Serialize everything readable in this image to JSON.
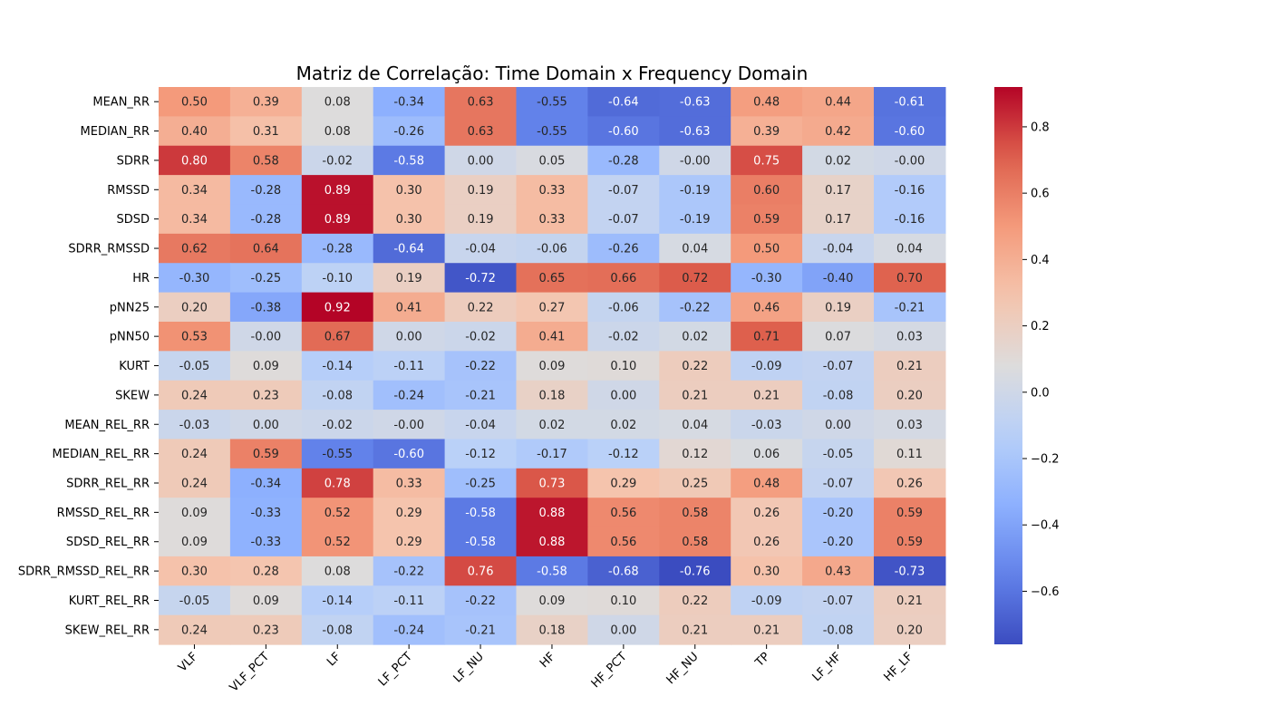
{
  "chart_data": {
    "type": "heatmap",
    "title": "Matriz de Correlação: Time Domain x Frequency Domain",
    "rows": [
      "MEAN_RR",
      "MEDIAN_RR",
      "SDRR",
      "RMSSD",
      "SDSD",
      "SDRR_RMSSD",
      "HR",
      "pNN25",
      "pNN50",
      "KURT",
      "SKEW",
      "MEAN_REL_RR",
      "MEDIAN_REL_RR",
      "SDRR_REL_RR",
      "RMSSD_REL_RR",
      "SDSD_REL_RR",
      "SDRR_RMSSD_REL_RR",
      "KURT_REL_RR",
      "SKEW_REL_RR"
    ],
    "columns": [
      "VLF",
      "VLF_PCT",
      "LF",
      "LF_PCT",
      "LF_NU",
      "HF",
      "HF_PCT",
      "HF_NU",
      "TP",
      "LF_HF",
      "HF_LF"
    ],
    "values": [
      [
        0.5,
        0.39,
        0.08,
        -0.34,
        0.63,
        -0.55,
        -0.64,
        -0.63,
        0.48,
        0.44,
        -0.61
      ],
      [
        0.4,
        0.31,
        0.08,
        -0.26,
        0.63,
        -0.55,
        -0.6,
        -0.63,
        0.39,
        0.42,
        -0.6
      ],
      [
        0.8,
        0.58,
        -0.02,
        -0.58,
        0.0,
        0.05,
        -0.28,
        -0.0,
        0.75,
        0.02,
        -0.0
      ],
      [
        0.34,
        -0.28,
        0.89,
        0.3,
        0.19,
        0.33,
        -0.07,
        -0.19,
        0.6,
        0.17,
        -0.16
      ],
      [
        0.34,
        -0.28,
        0.89,
        0.3,
        0.19,
        0.33,
        -0.07,
        -0.19,
        0.59,
        0.17,
        -0.16
      ],
      [
        0.62,
        0.64,
        -0.28,
        -0.64,
        -0.04,
        -0.06,
        -0.26,
        0.04,
        0.5,
        -0.04,
        0.04
      ],
      [
        -0.3,
        -0.25,
        -0.1,
        0.19,
        -0.72,
        0.65,
        0.66,
        0.72,
        -0.3,
        -0.4,
        0.7
      ],
      [
        0.2,
        -0.38,
        0.92,
        0.41,
        0.22,
        0.27,
        -0.06,
        -0.22,
        0.46,
        0.19,
        -0.21
      ],
      [
        0.53,
        -0.0,
        0.67,
        0.0,
        -0.02,
        0.41,
        -0.02,
        0.02,
        0.71,
        0.07,
        0.03
      ],
      [
        -0.05,
        0.09,
        -0.14,
        -0.11,
        -0.22,
        0.09,
        0.1,
        0.22,
        -0.09,
        -0.07,
        0.21
      ],
      [
        0.24,
        0.23,
        -0.08,
        -0.24,
        -0.21,
        0.18,
        0.0,
        0.21,
        0.21,
        -0.08,
        0.2
      ],
      [
        -0.03,
        0.0,
        -0.02,
        -0.0,
        -0.04,
        0.02,
        0.02,
        0.04,
        -0.03,
        0.0,
        0.03
      ],
      [
        0.24,
        0.59,
        -0.55,
        -0.6,
        -0.12,
        -0.17,
        -0.12,
        0.12,
        0.06,
        -0.05,
        0.11
      ],
      [
        0.24,
        -0.34,
        0.78,
        0.33,
        -0.25,
        0.73,
        0.29,
        0.25,
        0.48,
        -0.07,
        0.26
      ],
      [
        0.09,
        -0.33,
        0.52,
        0.29,
        -0.58,
        0.88,
        0.56,
        0.58,
        0.26,
        -0.2,
        0.59
      ],
      [
        0.09,
        -0.33,
        0.52,
        0.29,
        -0.58,
        0.88,
        0.56,
        0.58,
        0.26,
        -0.2,
        0.59
      ],
      [
        0.3,
        0.28,
        0.08,
        -0.22,
        0.76,
        -0.58,
        -0.68,
        -0.76,
        0.3,
        0.43,
        -0.73
      ],
      [
        -0.05,
        0.09,
        -0.14,
        -0.11,
        -0.22,
        0.09,
        0.1,
        0.22,
        -0.09,
        -0.07,
        0.21
      ],
      [
        0.24,
        0.23,
        -0.08,
        -0.24,
        -0.21,
        0.18,
        0.0,
        0.21,
        0.21,
        -0.08,
        0.2
      ]
    ],
    "value_format": "2 decimals",
    "colormap": "coolwarm",
    "vmin": -0.76,
    "vmax": 0.92,
    "colorbar": {
      "ticks": [
        0.8,
        0.6,
        0.4,
        0.2,
        0.0,
        -0.2,
        -0.4,
        -0.6
      ],
      "tick_labels": [
        "0.8",
        "0.6",
        "0.4",
        "0.2",
        "0.0",
        "−0.2",
        "−0.4",
        "−0.6"
      ]
    },
    "grid": false,
    "colorbar_position": "right"
  }
}
